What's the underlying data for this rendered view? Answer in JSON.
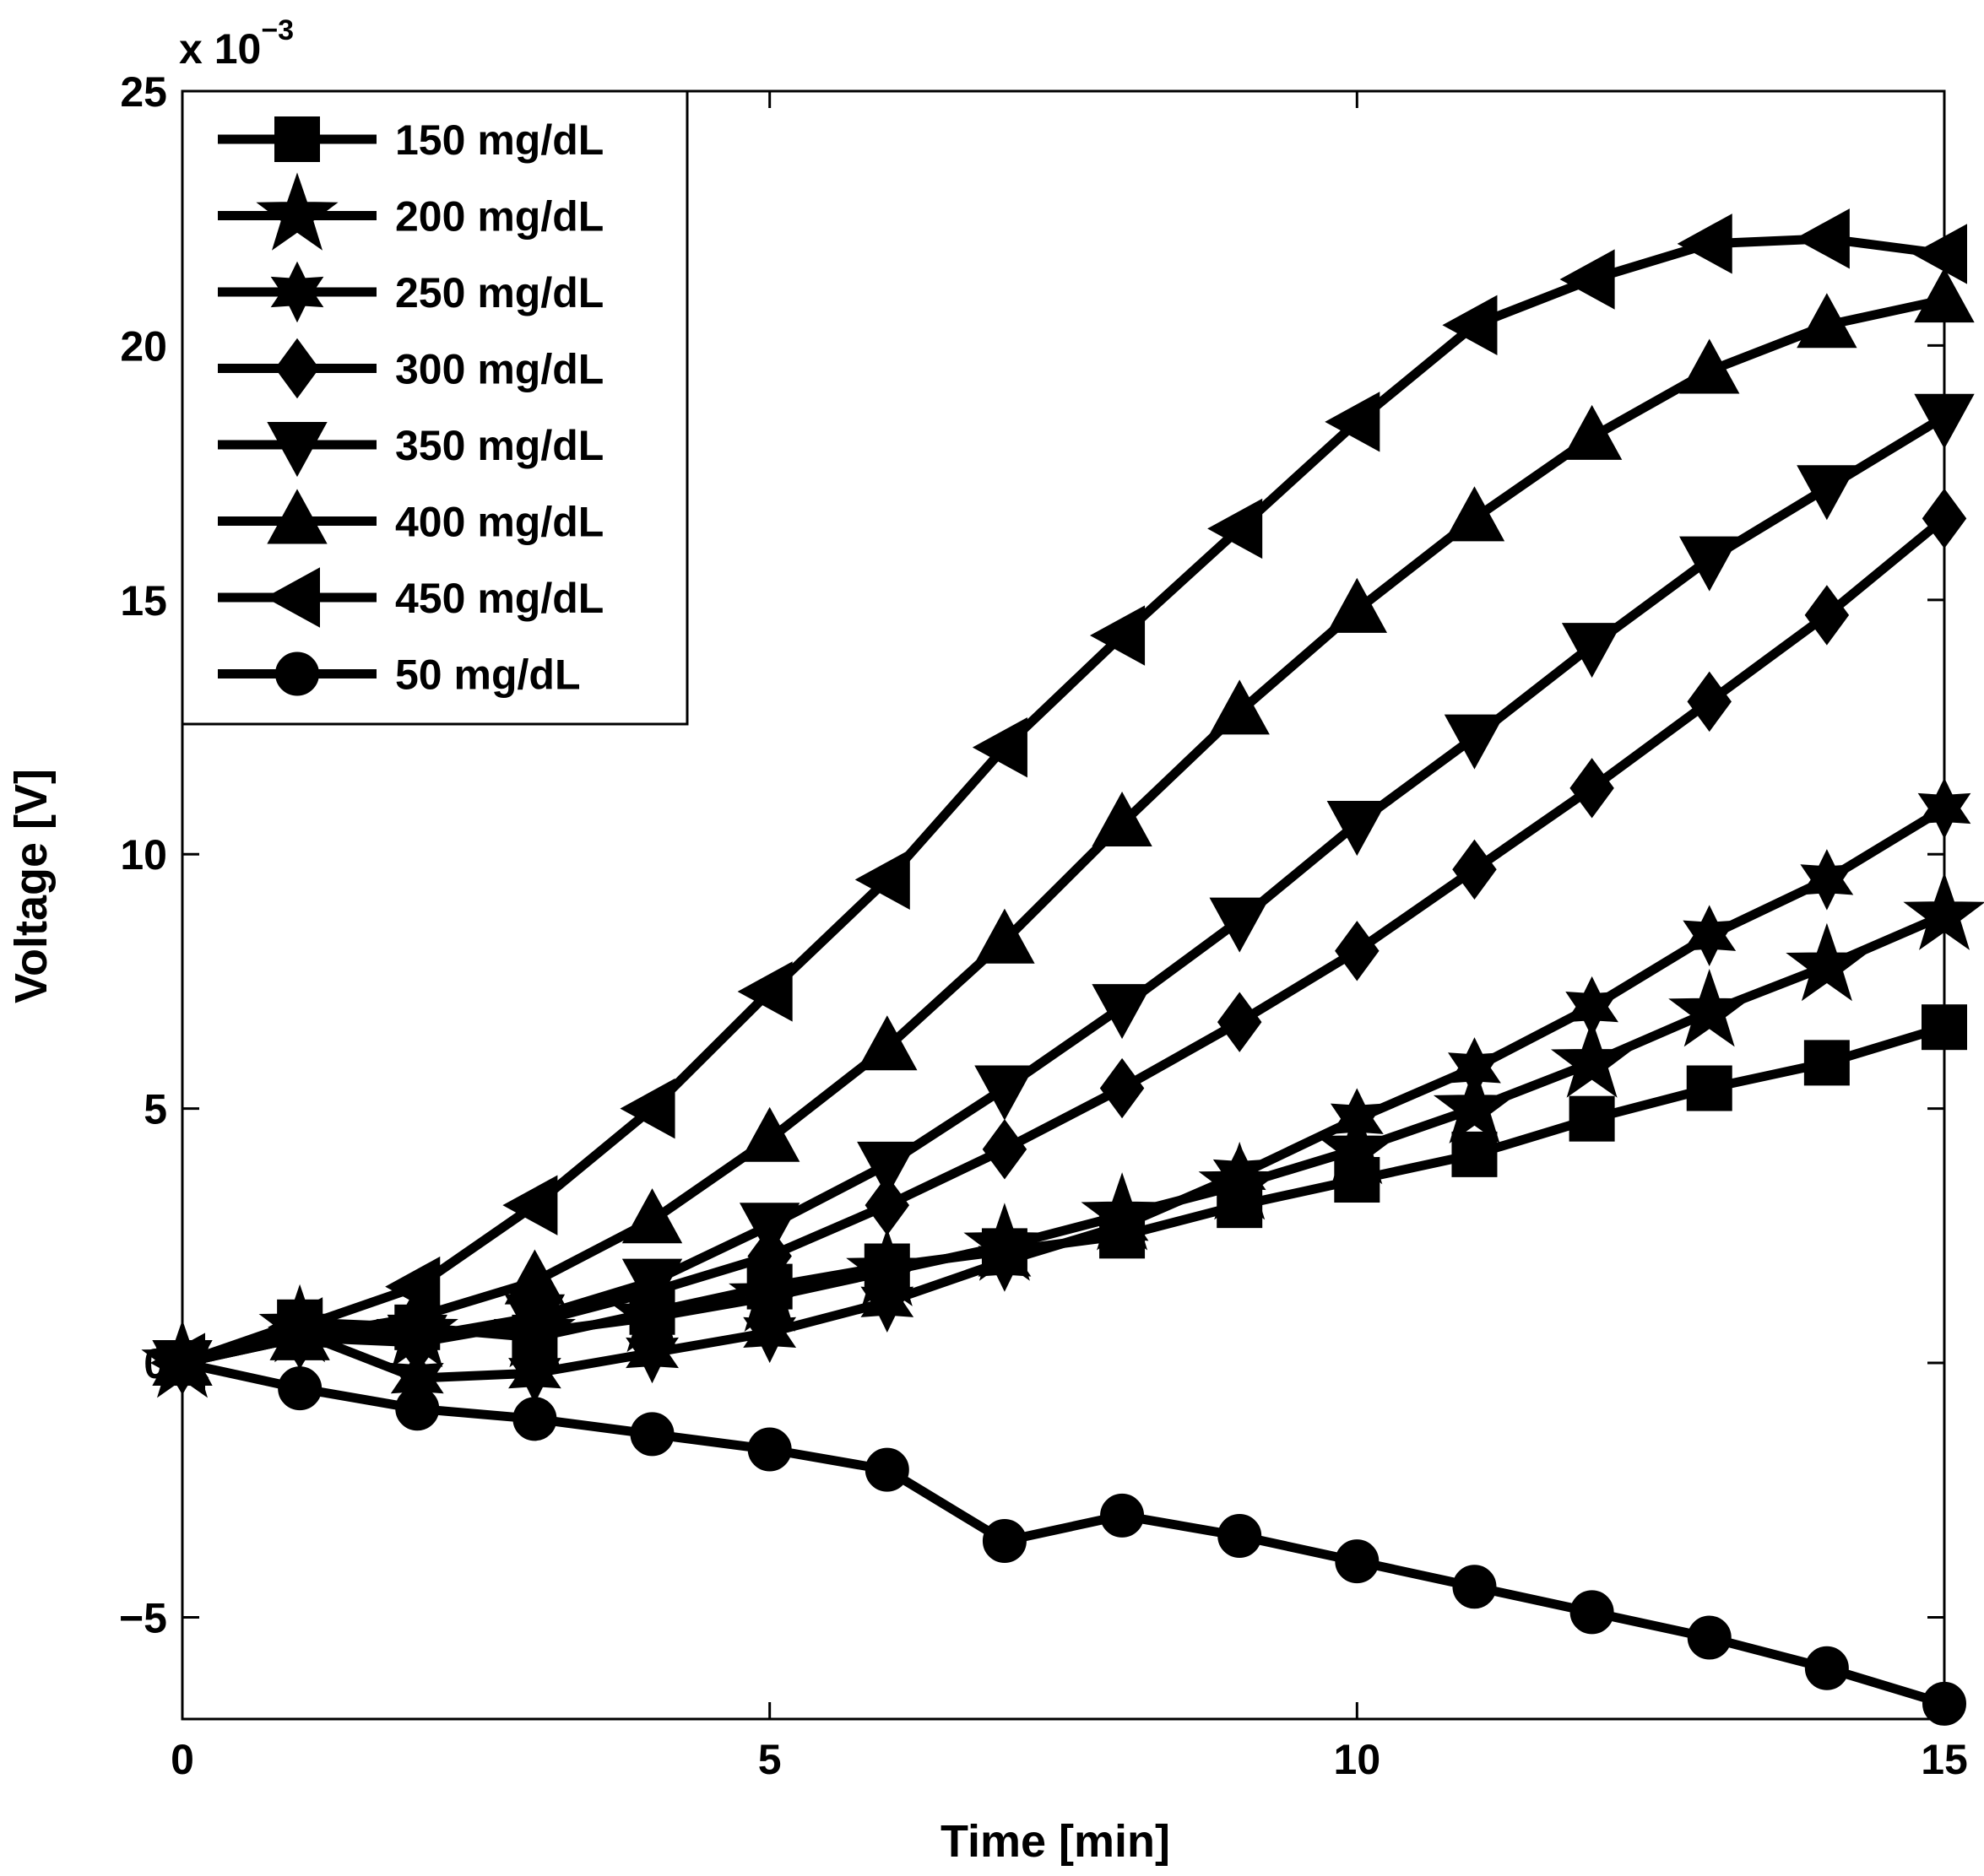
{
  "chart_data": {
    "type": "line",
    "xlabel": "Time [min]",
    "ylabel": "Voltage [V]",
    "y_multiplier_label": {
      "base": "x 10",
      "exponent": "−3"
    },
    "xlim": [
      0,
      15
    ],
    "ylim": [
      -7,
      25
    ],
    "x_ticks": [
      0,
      5,
      10,
      15
    ],
    "y_ticks": [
      -5,
      0,
      5,
      10,
      15,
      20,
      25
    ],
    "x_tick_labels": [
      "0",
      "5",
      "10",
      "15"
    ],
    "y_tick_labels": [
      "−5",
      "0",
      "5",
      "10",
      "15",
      "20",
      "25"
    ],
    "grid": false,
    "legend_position": "top-left",
    "line_color": "#000000",
    "x": [
      0,
      1,
      2,
      3,
      4,
      5,
      6,
      7,
      8,
      9,
      10,
      11,
      12,
      13,
      14,
      15
    ],
    "series": [
      {
        "name": "150 mg/dL",
        "marker": "square",
        "values": [
          0,
          0.8,
          0.7,
          0.5,
          1.0,
          1.5,
          1.9,
          2.2,
          2.5,
          3.1,
          3.6,
          4.1,
          4.8,
          5.4,
          5.9,
          6.6
        ]
      },
      {
        "name": "200 mg/dL",
        "marker": "pentagram",
        "values": [
          0,
          0.7,
          0.6,
          0.6,
          0.9,
          1.3,
          1.8,
          2.3,
          2.9,
          3.5,
          4.2,
          5.0,
          5.9,
          6.9,
          7.8,
          8.8
        ]
      },
      {
        "name": "250 mg/dL",
        "marker": "hexagram",
        "values": [
          0,
          0.6,
          -0.3,
          -0.2,
          0.2,
          0.6,
          1.2,
          2.0,
          2.7,
          3.7,
          4.8,
          5.8,
          7.0,
          8.4,
          9.5,
          10.9
        ]
      },
      {
        "name": "300 mg/dL",
        "marker": "diamond",
        "values": [
          0,
          0.5,
          0.4,
          0.8,
          1.4,
          2.1,
          3.1,
          4.2,
          5.4,
          6.7,
          8.1,
          9.7,
          11.3,
          13.0,
          14.7,
          16.6
        ]
      },
      {
        "name": "350 mg/dL",
        "marker": "triangle-down",
        "values": [
          0,
          0.5,
          0.5,
          0.9,
          1.6,
          2.7,
          3.9,
          5.4,
          7.0,
          8.7,
          10.6,
          12.3,
          14.1,
          15.8,
          17.2,
          18.6
        ]
      },
      {
        "name": "400 mg/dL",
        "marker": "triangle-up",
        "values": [
          0,
          0.5,
          0.9,
          1.6,
          2.8,
          4.4,
          6.2,
          8.3,
          10.6,
          12.8,
          14.8,
          16.6,
          18.2,
          19.5,
          20.4,
          20.9
        ]
      },
      {
        "name": "450 mg/dL",
        "marker": "triangle-left",
        "values": [
          0,
          0.7,
          1.5,
          3.1,
          5.0,
          7.3,
          9.5,
          12.1,
          14.3,
          16.4,
          18.5,
          20.4,
          21.3,
          22.0,
          22.1,
          21.8
        ]
      },
      {
        "name": "50 mg/dL",
        "marker": "circle",
        "values": [
          0,
          -0.5,
          -0.9,
          -1.1,
          -1.4,
          -1.7,
          -2.1,
          -3.5,
          -3.0,
          -3.4,
          -3.9,
          -4.4,
          -4.9,
          -5.4,
          -6.0,
          -6.7
        ]
      }
    ]
  }
}
